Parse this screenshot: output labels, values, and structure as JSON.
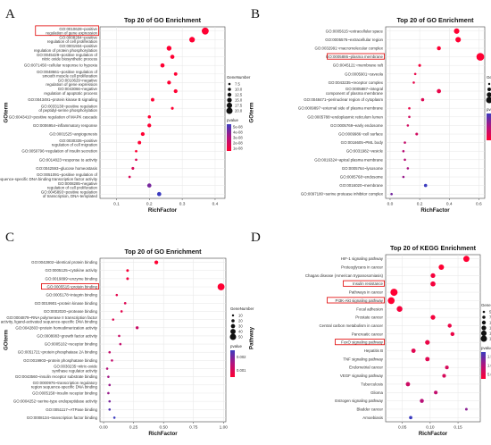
{
  "figure": {
    "panel_letters": [
      "A",
      "B",
      "C",
      "D"
    ],
    "colors": {
      "pvalue_low": "#ff0033",
      "pvalue_mid": "#b3127d",
      "pvalue_high": "#3b3bbf",
      "grid": "#e6e6e6",
      "highlight_box": "#e00000"
    }
  },
  "chart_data": [
    {
      "panel": "A",
      "type": "scatter",
      "title": "Top 20 of GO Enrichment",
      "xlabel": "RichFactor",
      "ylabel": "GOterm",
      "xlim": [
        0.05,
        0.43
      ],
      "xticks": [
        0.1,
        0.2,
        0.3,
        0.4
      ],
      "tick_labels": [
        "0.1",
        "0.2",
        "0.3",
        "0.4"
      ],
      "highlighted": [
        "GO:0010628~positive regulation of gene expression"
      ],
      "legend": {
        "size_title": "GeneNumber",
        "size_values": [
          7.5,
          10.0,
          12.5,
          15.0,
          17.5,
          20.0
        ],
        "size_labels": [
          "7.5",
          "10.0",
          "12.5",
          "15.0",
          "17.5",
          "20.0"
        ],
        "color_title": "pvalue",
        "color_labels": [
          "5e-08",
          "4e-08",
          "3e-08",
          "2e-08",
          "1e-08"
        ]
      },
      "terms": [
        "GO:0010628~positive regulation of gene expression",
        "GO:0008284~positive regulation of cell proliferation",
        "GO:0001934~positive regulation of protein phosphorylation",
        "GO:0045429~positive regulation of nitric oxide biosynthetic process",
        "GO:0071456~cellular response to hypoxia",
        "GO:0048661~positive regulation of smooth muscle cell proliferation",
        "GO:0010629~negative regulation of gene expression",
        "GO:0043066~negative regulation of apoptotic process",
        "GO:0043491~protein kinase B signaling",
        "GO:0033138~positive regulation of peptidyl-serine phosphorylation",
        "GO:0043410~positive regulation of MAPK cascade",
        "GO:0006954~inflammatory response",
        "GO:0001525~angiogenesis",
        "GO:0030335~positive regulation of cell migration",
        "GO:0050796~regulation of insulin secretion",
        "GO:0014823~response to activity",
        "GO:0042593~glucose homeostasis",
        "GO:0051091~positive regulation of sequence-specific DNA binding transcription factor activity",
        "GO:0008285~negative regulation of cell proliferation",
        "GO:0045893~positive regulation of transcription, DNA-templated"
      ],
      "x": [
        0.37,
        0.33,
        0.26,
        0.27,
        0.24,
        0.28,
        0.26,
        0.28,
        0.21,
        0.27,
        0.2,
        0.2,
        0.18,
        0.17,
        0.16,
        0.16,
        0.15,
        0.14,
        0.2,
        0.23
      ],
      "gene_number": [
        20,
        16,
        14,
        12,
        12,
        10,
        11,
        11,
        10,
        8,
        9,
        11,
        11,
        10,
        7,
        7,
        8,
        7,
        12,
        12
      ],
      "pvalue": [
        1e-08,
        1e-08,
        1e-08,
        1e-08,
        1e-08,
        1e-08,
        1e-08,
        1e-08,
        1e-08,
        1e-08,
        1e-08,
        1e-08,
        1e-08,
        1e-08,
        1e-08,
        2e-08,
        2e-08,
        2e-08,
        4e-08,
        5e-08
      ]
    },
    {
      "panel": "B",
      "type": "scatter",
      "title": "Top 20 of GO Enrichment",
      "xlabel": "RichFactor",
      "ylabel": "GOterm",
      "xlim": [
        -0.03,
        0.64
      ],
      "xticks": [
        0.0,
        0.2,
        0.4,
        0.6
      ],
      "tick_labels": [
        "0.0",
        "0.2",
        "0.4",
        "0.6"
      ],
      "highlighted": [
        "GO:0005886~plasma membrane"
      ],
      "legend": {
        "size_title": "GeneNumber",
        "size_values": [
          10,
          20,
          30,
          40
        ],
        "size_labels": [
          "10",
          "20",
          "30",
          "40"
        ],
        "color_title": "pvalue",
        "color_labels": [
          "0.0125",
          "0.0100",
          "0.0075",
          "0.0050",
          "0.0025"
        ]
      },
      "terms": [
        "GO:0005615~extracellular space",
        "GO:0005576~extracellular region",
        "GO:0032991~macromolecular complex",
        "GO:0005886~plasma membrane",
        "GO:0045121~membrane raft",
        "GO:0005901~caveola",
        "GO:0043235~receptor complex",
        "GO:0005887~integral component of plasma membrane",
        "GO:0048471~perinuclear region of cytoplasm",
        "GO:0009897~external side of plasma membrane",
        "GO:0005788~endoplasmic reticulum lumen",
        "GO:0005769~early endosome",
        "GO:0009986~cell surface",
        "GO:0016605~PML body",
        "GO:0031982~vesicle",
        "GO:0016324~apical plasma membrane",
        "GO:0005764~lysosome",
        "GO:0005768~endosome",
        "GO:0016020~membrane",
        "GO:0097180~serine protease inhibitor complex"
      ],
      "x": [
        0.45,
        0.46,
        0.33,
        0.61,
        0.2,
        0.17,
        0.16,
        0.33,
        0.22,
        0.13,
        0.13,
        0.12,
        0.18,
        0.1,
        0.09,
        0.1,
        0.12,
        0.09,
        0.24,
        0.01
      ],
      "gene_number": [
        30,
        30,
        20,
        45,
        12,
        8,
        8,
        22,
        15,
        8,
        8,
        8,
        12,
        6,
        6,
        6,
        8,
        6,
        15,
        2
      ],
      "pvalue": [
        0.0001,
        0.0001,
        0.0002,
        0.0001,
        0.001,
        0.002,
        0.002,
        0.002,
        0.003,
        0.002,
        0.004,
        0.004,
        0.004,
        0.005,
        0.006,
        0.006,
        0.007,
        0.008,
        0.013,
        0.01
      ]
    },
    {
      "panel": "C",
      "type": "scatter",
      "title": "Top 20 of GO Enrichment",
      "xlabel": "RichFactor",
      "ylabel": "GOterm",
      "xlim": [
        -0.03,
        1.02
      ],
      "xticks": [
        0.0,
        0.25,
        0.5,
        0.75,
        1.0
      ],
      "tick_labels": [
        "0.00",
        "0.25",
        "0.50",
        "0.75",
        "1.00"
      ],
      "highlighted": [
        "GO:0005515~protein binding"
      ],
      "legend": {
        "size_title": "GeneNumber",
        "size_values": [
          10,
          20,
          30,
          40,
          50
        ],
        "size_labels": [
          "10",
          "20",
          "30",
          "40",
          "50"
        ],
        "color_title": "pvalue",
        "color_labels": [
          "0.002",
          "0.001"
        ]
      },
      "terms": [
        "GO:0042802~identical protein binding",
        "GO:0005125~cytokine activity",
        "GO:0019899~enzyme binding",
        "GO:0005515~protein binding",
        "GO:0005178~integrin binding",
        "GO:0019901~protein kinase binding",
        "GO:0002020~protease binding",
        "GO:0004879~RNA polymerase II transcription factor activity, ligand-activated sequence-specific DNA binding",
        "GO:0042803~protein homodimerization activity",
        "GO:0008083~growth factor activity",
        "GO:0005102~receptor binding",
        "GO:0051721~protein phosphatase 2A binding",
        "GO:0019903~protein phosphatase binding",
        "GO:0030235~nitric-oxide synthase regulator activity",
        "GO:0043560~insulin receptor substrate binding",
        "GO:0000976~transcription regulatory region sequence-specific DNA binding",
        "GO:0005158~insulin receptor binding",
        "GO:0004252~serine-type endopeptidase activity",
        "GO:0051117~ATPase binding",
        "GO:0008134~transcription factor binding"
      ],
      "x": [
        0.44,
        0.2,
        0.2,
        0.98,
        0.11,
        0.18,
        0.15,
        0.08,
        0.28,
        0.13,
        0.14,
        0.05,
        0.07,
        0.03,
        0.04,
        0.05,
        0.04,
        0.05,
        0.05,
        0.09
      ],
      "gene_number": [
        22,
        12,
        12,
        50,
        7,
        10,
        8,
        5,
        15,
        7,
        8,
        3,
        4,
        2,
        2,
        3,
        2,
        3,
        3,
        5
      ],
      "pvalue": [
        0.0001,
        0.0002,
        0.0003,
        0.0001,
        0.0005,
        0.0006,
        0.0005,
        0.0006,
        0.0009,
        0.0009,
        0.001,
        0.001,
        0.001,
        0.0012,
        0.0014,
        0.0015,
        0.0015,
        0.0018,
        0.0022,
        0.0024
      ]
    },
    {
      "panel": "D",
      "type": "scatter",
      "title": "Top 20 of KEGG Enrichment",
      "xlabel": "RichFactor",
      "ylabel": "Pathway",
      "xlim": [
        0.02,
        0.19
      ],
      "xticks": [
        0.05,
        0.1,
        0.15
      ],
      "tick_labels": [
        "0.05",
        "0.10",
        "0.15"
      ],
      "highlighted": [
        "Insulin resistance",
        "PI3K-Akt signaling pathway",
        "FoxO signaling pathway"
      ],
      "legend": {
        "size_title": "GeneNumber",
        "size_values": [
          5.0,
          7.5,
          10.0,
          12.5,
          15.0,
          17.5
        ],
        "size_labels": [
          "5.0",
          "7.5",
          "10.0",
          "12.5",
          "15.0",
          "17.5"
        ],
        "color_title": "pvalue",
        "color_labels": [
          "1.5e-07",
          "1.0e-07",
          "5.0e-08"
        ]
      },
      "terms": [
        "HIF-1 signaling pathway",
        "Proteoglycans in cancer",
        "Chagas disease (American trypanosomiasis)",
        "Insulin resistance",
        "Pathways in cancer",
        "PI3K-Akt signaling pathway",
        "Focal adhesion",
        "Prostate cancer",
        "Central carbon metabolism in cancer",
        "Pancreatic cancer",
        "FoxO signaling pathway",
        "Hepatitis B",
        "TNF signaling pathway",
        "Endometrial cancer",
        "VEGF signaling pathway",
        "Tuberculosis",
        "Glioma",
        "Estrogen signaling pathway",
        "Bladder cancer",
        "Amoebiasis"
      ],
      "x": [
        0.165,
        0.12,
        0.105,
        0.105,
        0.035,
        0.03,
        0.045,
        0.105,
        0.135,
        0.14,
        0.095,
        0.07,
        0.095,
        0.13,
        0.125,
        0.06,
        0.11,
        0.085,
        0.165,
        0.065
      ],
      "gene_number": [
        15,
        13,
        11,
        12,
        18,
        17,
        14,
        11,
        9,
        9,
        11,
        10,
        10,
        8,
        8,
        10,
        8,
        9,
        5,
        7
      ],
      "pvalue": [
        2e-08,
        2e-08,
        3e-08,
        3e-08,
        2e-08,
        2e-08,
        3e-08,
        3e-08,
        4e-08,
        4e-08,
        4e-08,
        5e-08,
        5e-08,
        6e-08,
        6e-08,
        7e-08,
        8e-08,
        9e-08,
        1.2e-07,
        1.7e-07
      ]
    }
  ]
}
